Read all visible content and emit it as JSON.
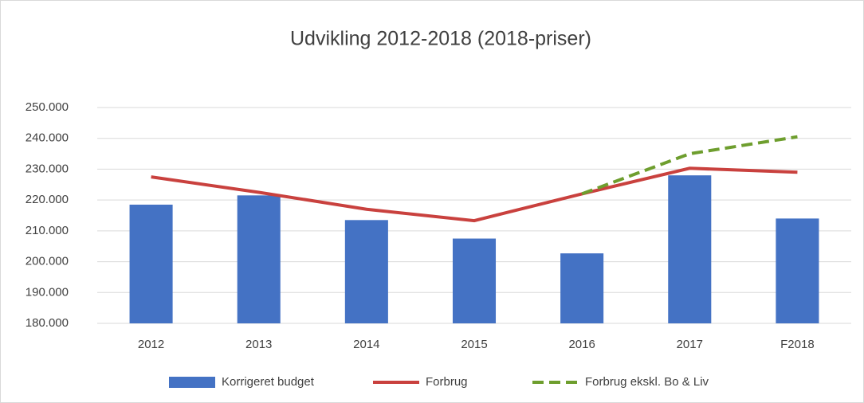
{
  "chart_data": {
    "type": "bar-line",
    "title": "Udvikling 2012-2018 (2018-priser)",
    "categories": [
      "2012",
      "2013",
      "2014",
      "2015",
      "2016",
      "2017",
      "F2018"
    ],
    "series": [
      {
        "name": "Korrigeret budget",
        "type": "bar",
        "color": "#4472c4",
        "values": [
          218500,
          221500,
          213500,
          207500,
          202700,
          228000,
          214000
        ]
      },
      {
        "name": "Forbrug",
        "type": "line",
        "color": "#c9413e",
        "values": [
          227500,
          222500,
          217000,
          213300,
          222000,
          230300,
          229000
        ]
      },
      {
        "name": "Forbrug ekskl. Bo & Liv",
        "type": "line",
        "dashed": true,
        "color": "#6e9e2e",
        "values": [
          null,
          null,
          null,
          null,
          222000,
          235000,
          240500
        ]
      }
    ],
    "ylim": [
      180000,
      250000
    ],
    "yticks": [
      {
        "value": 180000,
        "label": "180.000"
      },
      {
        "value": 190000,
        "label": "190.000"
      },
      {
        "value": 200000,
        "label": "200.000"
      },
      {
        "value": 210000,
        "label": "210.000"
      },
      {
        "value": 220000,
        "label": "220.000"
      },
      {
        "value": 230000,
        "label": "230.000"
      },
      {
        "value": 240000,
        "label": "240.000"
      },
      {
        "value": 250000,
        "label": "250.000"
      }
    ],
    "grid": true,
    "legend": "bottom"
  }
}
